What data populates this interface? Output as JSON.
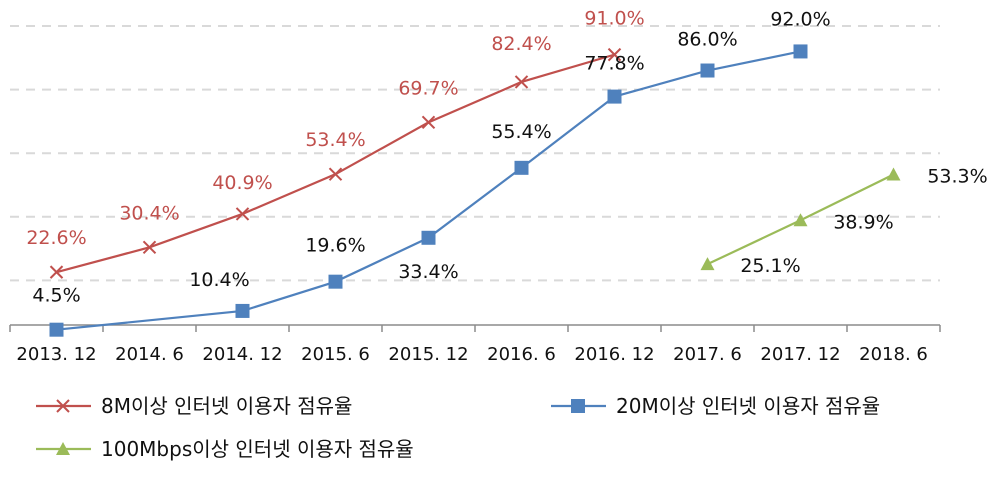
{
  "chart_data": {
    "type": "line",
    "title": "",
    "xlabel": "",
    "ylabel": "",
    "ylim": [
      0,
      100
    ],
    "grid": true,
    "legend_position": "bottom",
    "categories": [
      "2013. 12",
      "2014. 6",
      "2014. 12",
      "2015. 6",
      "2015. 12",
      "2016. 6",
      "2016. 12",
      "2017. 6",
      "2017. 12",
      "2018. 6"
    ],
    "series": [
      {
        "name": "8M이상 인터넷 이용자 점유율",
        "color": "#c0504d",
        "marker": "x",
        "values": [
          22.6,
          30.4,
          40.9,
          53.4,
          69.7,
          82.4,
          91.0,
          null,
          null,
          null
        ],
        "labels": [
          "22.6%",
          "30.4%",
          "40.9%",
          "53.4%",
          "69.7%",
          "82.4%",
          "91.0%",
          null,
          null,
          null
        ]
      },
      {
        "name": "20M이상 인터넷 이용자 점유율",
        "color": "#4f81bd",
        "marker": "square",
        "values": [
          4.5,
          null,
          10.4,
          19.6,
          33.4,
          55.4,
          77.8,
          86.0,
          92.0,
          null
        ],
        "labels": [
          "4.5%",
          null,
          "10.4%",
          "19.6%",
          "33.4%",
          "55.4%",
          "77.8%",
          "86.0%",
          "92.0%",
          null
        ]
      },
      {
        "name": "100Mbps이상 인터넷 이용자 점유율",
        "color": "#9bbb59",
        "marker": "triangle",
        "values": [
          null,
          null,
          null,
          null,
          null,
          null,
          null,
          25.1,
          38.9,
          53.3
        ],
        "labels": [
          null,
          null,
          null,
          null,
          null,
          null,
          null,
          "25.1%",
          "38.9%",
          "53.3%"
        ]
      }
    ]
  }
}
